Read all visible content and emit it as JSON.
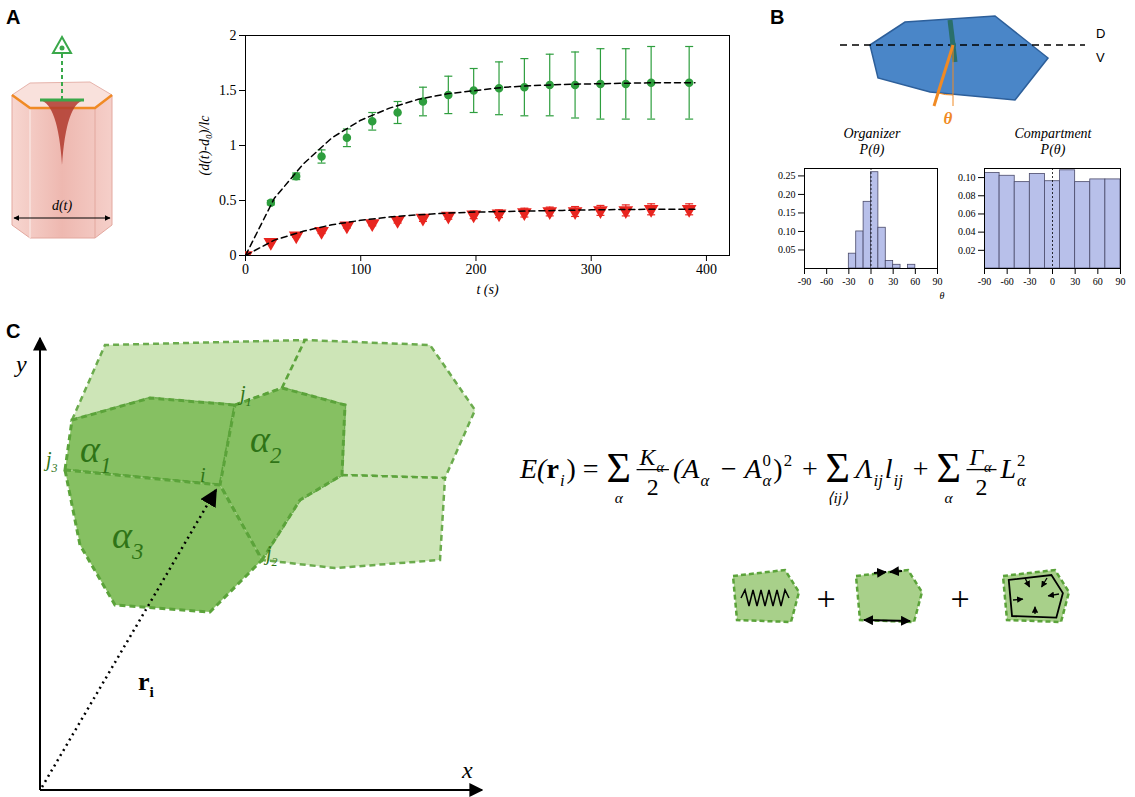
{
  "panel_labels": [
    "A",
    "B",
    "C"
  ],
  "chart_data": [
    {
      "type": "line",
      "x_label": "t (s)",
      "y_label": "(d(t)-d₀)/lc",
      "xlim": [
        0,
        420
      ],
      "xticks": [
        0,
        100,
        200,
        300,
        400
      ],
      "ylim": [
        0,
        2
      ],
      "yticks": [
        0,
        0.5,
        1,
        1.5,
        2
      ],
      "x": [
        0,
        22,
        44,
        66,
        88,
        110,
        132,
        154,
        176,
        198,
        220,
        242,
        264,
        286,
        308,
        330,
        352,
        385
      ],
      "series": [
        {
          "type": "scatter",
          "color": "#2e9e3e",
          "marker": "circle",
          "values": [
            0,
            0.48,
            0.72,
            0.9,
            1.07,
            1.22,
            1.3,
            1.4,
            1.46,
            1.5,
            1.52,
            1.53,
            1.55,
            1.55,
            1.56,
            1.56,
            1.57,
            1.57
          ],
          "errors": [
            0,
            0.02,
            0.03,
            0.06,
            0.08,
            0.08,
            0.1,
            0.13,
            0.17,
            0.2,
            0.24,
            0.26,
            0.28,
            0.3,
            0.32,
            0.32,
            0.33,
            0.33
          ]
        },
        {
          "type": "scatter",
          "color": "#e8251f",
          "marker": "triangle-down",
          "values": [
            0,
            0.12,
            0.18,
            0.22,
            0.27,
            0.29,
            0.32,
            0.34,
            0.36,
            0.37,
            0.38,
            0.39,
            0.4,
            0.4,
            0.41,
            0.41,
            0.42,
            0.42
          ],
          "errors": [
            0,
            0.01,
            0.015,
            0.02,
            0.02,
            0.02,
            0.025,
            0.03,
            0.03,
            0.035,
            0.035,
            0.04,
            0.04,
            0.045,
            0.045,
            0.05,
            0.05,
            0.05
          ]
        },
        {
          "type": "line",
          "color": "#000000",
          "line_style": "dashed",
          "x": [
            0,
            25,
            50,
            75,
            100,
            125,
            150,
            175,
            200,
            225,
            250,
            275,
            300,
            325,
            350,
            375,
            390
          ],
          "values": [
            0,
            0.52,
            0.83,
            1.07,
            1.23,
            1.34,
            1.42,
            1.47,
            1.5,
            1.53,
            1.545,
            1.555,
            1.56,
            1.565,
            1.57,
            1.57,
            1.57
          ]
        },
        {
          "type": "line",
          "color": "#000000",
          "line_style": "dashed",
          "x": [
            0,
            25,
            50,
            75,
            100,
            125,
            150,
            175,
            200,
            225,
            250,
            275,
            300,
            325,
            350,
            375,
            390
          ],
          "values": [
            0,
            0.14,
            0.22,
            0.28,
            0.32,
            0.35,
            0.37,
            0.385,
            0.395,
            0.4,
            0.405,
            0.41,
            0.415,
            0.418,
            0.42,
            0.42,
            0.42
          ]
        }
      ]
    },
    {
      "type": "histogram",
      "title": "Organizer",
      "subtitle": "P(θ)",
      "x_label": "θ",
      "bins": [
        -30,
        -20,
        -10,
        0,
        10,
        20,
        30,
        40,
        50,
        60
      ],
      "values": [
        0.04,
        0.1,
        0.18,
        0.26,
        0.11,
        0.02,
        0.01,
        0,
        0.01
      ],
      "color": "#b8c0ea",
      "xlim": [
        -90,
        90
      ],
      "xticks": [
        -90,
        -60,
        -30,
        0,
        30,
        60,
        90
      ],
      "ylim": [
        0,
        0.27
      ],
      "yticks": [
        0.05,
        {
          "value": 0.1,
          "label": "0.10"
        },
        0.15,
        {
          "value": 0.2,
          "label": "0.20"
        },
        0.25
      ]
    },
    {
      "type": "histogram",
      "title": "Compartment",
      "subtitle": "P(θ)",
      "bins": [
        -90,
        -70,
        -50,
        -30,
        -10,
        10,
        30,
        50,
        70,
        90
      ],
      "values": [
        0.105,
        0.102,
        0.095,
        0.104,
        0.096,
        0.108,
        0.095,
        0.098,
        0.098
      ],
      "color": "#b8c0ea",
      "xlim": [
        -90,
        90
      ],
      "xticks": [
        -90,
        -60,
        -30,
        0,
        30,
        60,
        90
      ],
      "ylim": [
        0,
        0.11
      ],
      "yticks": [
        0.02,
        0.04,
        0.06,
        0.08,
        {
          "value": 0.1,
          "label": "0.10"
        }
      ]
    }
  ],
  "cell_sketch": {
    "width_label": "d(t)"
  },
  "orientation_sketch": {
    "above": "D",
    "below": "V",
    "angle": "θ"
  },
  "vertex_model": {
    "axes": {
      "x": "x",
      "y": "y"
    },
    "cells": [
      {
        "label": "α",
        "sub": "1"
      },
      {
        "label": "α",
        "sub": "2"
      },
      {
        "label": "α",
        "sub": "3"
      }
    ],
    "vertices": [
      {
        "label": "i"
      },
      {
        "label": "j",
        "sub": "1"
      },
      {
        "label": "j",
        "sub": "2"
      },
      {
        "label": "j",
        "sub": "3"
      }
    ],
    "position": {
      "label": "r",
      "sub": "i"
    }
  },
  "equation": {
    "terms": [
      {
        "text": "E("
      },
      {
        "text": "r",
        "sub": "i",
        "bold": true
      },
      {
        "text": ") = "
      },
      {
        "sum": "Σ",
        "index": "α"
      },
      {
        "num": {
          "text": "K",
          "sub": "α"
        },
        "den": "2"
      },
      {
        "text": "(A",
        "sub": "α"
      },
      {
        "text": " − A",
        "sub": "α",
        "sup": "0"
      },
      {
        "text": ")",
        "sup": "2"
      },
      {
        "text": " + "
      },
      {
        "sum": "Σ",
        "index": "⟨ij⟩"
      },
      {
        "text": "Λ",
        "sub": "ij"
      },
      {
        "text": "l",
        "sub": "ij"
      },
      {
        "text": " + "
      },
      {
        "sum": "Σ",
        "index": "α"
      },
      {
        "num": {
          "text": "Γ",
          "sub": "α"
        },
        "den": "2"
      },
      {
        "text": "L",
        "sub": "α",
        "sup": "2"
      }
    ],
    "icon_joiner": "+"
  }
}
